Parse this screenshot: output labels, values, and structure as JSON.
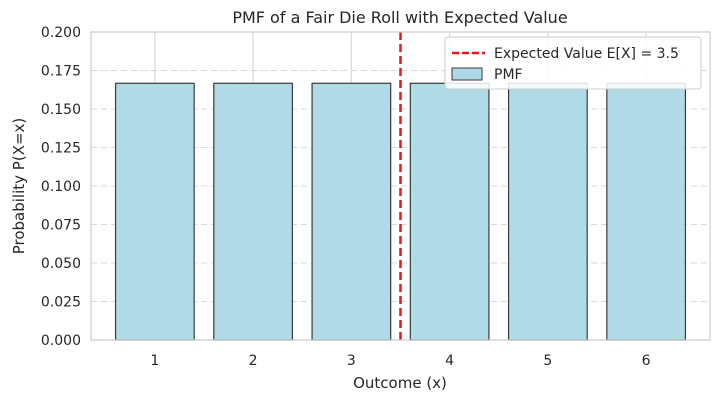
{
  "chart_data": {
    "type": "bar",
    "title": "PMF of a Fair Die Roll with Expected Value",
    "xlabel": "Outcome (x)",
    "ylabel": "Probability P(X=x)",
    "categories": [
      "1",
      "2",
      "3",
      "4",
      "5",
      "6"
    ],
    "x": [
      1,
      2,
      3,
      4,
      5,
      6
    ],
    "values": [
      0.1667,
      0.1667,
      0.1667,
      0.1667,
      0.1667,
      0.1667
    ],
    "xlim": [
      0.35,
      6.65
    ],
    "ylim": [
      0,
      0.2
    ],
    "yticks": [
      "0.000",
      "0.025",
      "0.050",
      "0.075",
      "0.100",
      "0.125",
      "0.150",
      "0.175",
      "0.200"
    ],
    "expected_value": 3.5,
    "grid": true,
    "legend": {
      "placement": "top-right",
      "entries": [
        {
          "label": "Expected Value E[X] = 3.5",
          "kind": "line"
        },
        {
          "label": "PMF",
          "kind": "bar"
        }
      ]
    },
    "colors": {
      "bar_fill": "#add8e6",
      "bar_edge": "#3a3a3a",
      "expected_line": "#e41a1c",
      "grid": "#d9d9d9",
      "frame": "#cccccc"
    }
  }
}
